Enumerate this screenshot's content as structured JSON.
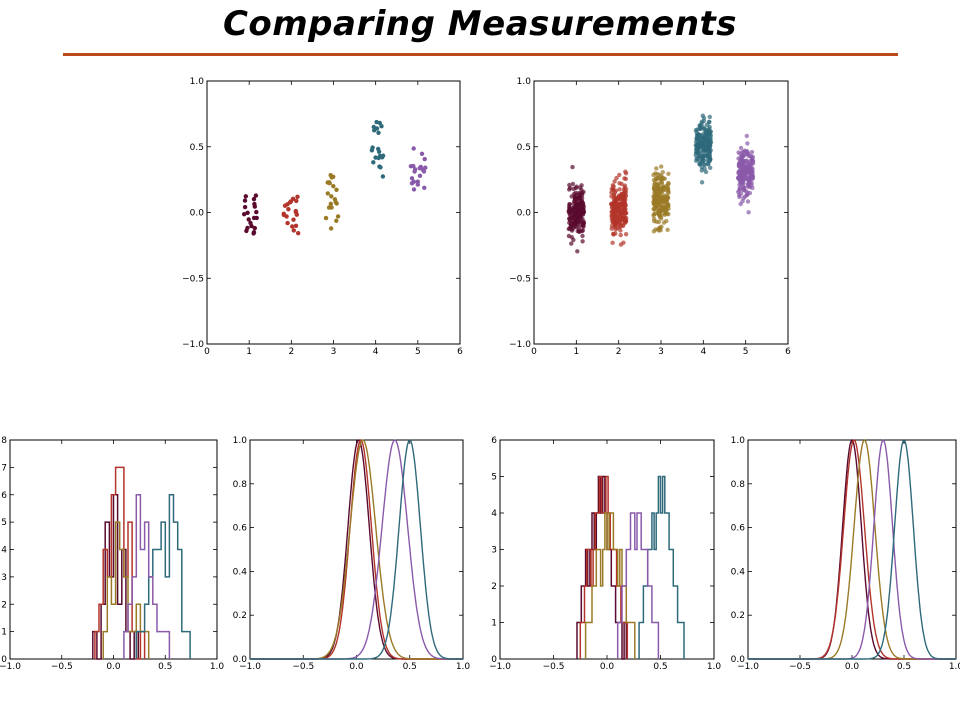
{
  "slide": {
    "title": "Comparing Measurements",
    "rule_color": "#b84a1c"
  },
  "palette": {
    "c1": "#5a0a2e",
    "c2": "#b2342a",
    "c3": "#9a7a26",
    "c4": "#2e6a7a",
    "c5": "#8a5aaa"
  },
  "chart_data": [
    {
      "id": "scatter-small",
      "type": "scatter",
      "title": "",
      "xlabel": "",
      "ylabel": "",
      "xlim": [
        0,
        6
      ],
      "ylim": [
        -1.0,
        1.0
      ],
      "xticks": [
        "0",
        "1",
        "2",
        "3",
        "4",
        "5",
        "6"
      ],
      "yticks": [
        "-1.0",
        "-0.5",
        "0.0",
        "0.5",
        "1.0"
      ],
      "grid": false,
      "points_per_group": 20,
      "groups": [
        {
          "x": 1,
          "center": 0.0,
          "spread": 0.1,
          "color": "c1"
        },
        {
          "x": 2,
          "center": 0.02,
          "spread": 0.1,
          "color": "c2"
        },
        {
          "x": 3,
          "center": 0.12,
          "spread": 0.1,
          "color": "c3"
        },
        {
          "x": 4,
          "center": 0.5,
          "spread": 0.1,
          "color": "c4"
        },
        {
          "x": 5,
          "center": 0.32,
          "spread": 0.1,
          "color": "c5"
        }
      ]
    },
    {
      "id": "scatter-large",
      "type": "scatter",
      "title": "",
      "xlabel": "",
      "ylabel": "",
      "xlim": [
        0,
        6
      ],
      "ylim": [
        -1.0,
        1.0
      ],
      "xticks": [
        "0",
        "1",
        "2",
        "3",
        "4",
        "5",
        "6"
      ],
      "yticks": [
        "-1.0",
        "-0.5",
        "0.0",
        "0.5",
        "1.0"
      ],
      "grid": false,
      "points_per_group": 200,
      "groups": [
        {
          "x": 1,
          "center": 0.0,
          "spread": 0.09,
          "color": "c1"
        },
        {
          "x": 2,
          "center": 0.03,
          "spread": 0.1,
          "color": "c2"
        },
        {
          "x": 3,
          "center": 0.1,
          "spread": 0.1,
          "color": "c3"
        },
        {
          "x": 4,
          "center": 0.5,
          "spread": 0.09,
          "color": "c4"
        },
        {
          "x": 5,
          "center": 0.3,
          "spread": 0.09,
          "color": "c5"
        }
      ]
    },
    {
      "id": "hist-small",
      "type": "histogram",
      "xlim": [
        -1.0,
        1.0
      ],
      "ylim": [
        0,
        8
      ],
      "xticks": [
        "-1.0",
        "-0.5",
        "0.0",
        "0.5",
        "1.0"
      ],
      "yticks": [
        "0",
        "1",
        "2",
        "3",
        "4",
        "5",
        "6",
        "7",
        "8"
      ],
      "series": [
        {
          "color": "c1",
          "start": -0.2,
          "bin": 0.04,
          "counts": [
            1,
            0,
            2,
            5,
            3,
            6,
            2,
            4,
            1,
            0,
            1
          ]
        },
        {
          "color": "c2",
          "start": -0.18,
          "bin": 0.04,
          "counts": [
            1,
            2,
            4,
            3,
            6,
            7,
            7,
            3,
            5,
            1,
            0,
            1
          ]
        },
        {
          "color": "c3",
          "start": -0.1,
          "bin": 0.04,
          "counts": [
            1,
            3,
            2,
            5,
            4,
            3,
            1,
            1,
            2,
            1,
            1
          ]
        },
        {
          "color": "c4",
          "start": 0.22,
          "bin": 0.04,
          "counts": [
            1,
            1,
            2,
            3,
            4,
            4,
            5,
            3,
            6,
            5,
            4,
            1,
            1
          ]
        },
        {
          "color": "c5",
          "start": 0.1,
          "bin": 0.04,
          "counts": [
            1,
            2,
            3,
            6,
            4,
            5,
            3,
            2,
            1,
            1,
            1
          ]
        }
      ]
    },
    {
      "id": "density-small",
      "type": "line",
      "xlim": [
        -1.0,
        1.0
      ],
      "ylim": [
        0,
        1.0
      ],
      "xticks": [
        "-1.0",
        "-0.5",
        "0.0",
        "0.5",
        "1.0"
      ],
      "yticks": [
        "0.0",
        "0.2",
        "0.4",
        "0.6",
        "0.8",
        "1.0"
      ],
      "series": [
        {
          "color": "c1",
          "mu": 0.02,
          "sigma": 0.1
        },
        {
          "color": "c2",
          "mu": 0.04,
          "sigma": 0.1
        },
        {
          "color": "c3",
          "mu": 0.06,
          "sigma": 0.12
        },
        {
          "color": "c5",
          "mu": 0.36,
          "sigma": 0.12
        },
        {
          "color": "c4",
          "mu": 0.5,
          "sigma": 0.1
        }
      ]
    },
    {
      "id": "hist-large",
      "type": "histogram",
      "xlim": [
        -1.0,
        1.0
      ],
      "ylim": [
        0,
        6
      ],
      "xticks": [
        "-1.0",
        "-0.5",
        "0.0",
        "0.5",
        "1.0"
      ],
      "yticks": [
        "0",
        "1",
        "2",
        "3",
        "4",
        "5",
        "6"
      ],
      "series": [
        {
          "color": "c1",
          "start": -0.28,
          "bin": 0.02,
          "counts": [
            1,
            1,
            2,
            2,
            3,
            2,
            3,
            4,
            3,
            4,
            5,
            4,
            5,
            4,
            3,
            3,
            2,
            2,
            1,
            1,
            1,
            0,
            1
          ]
        },
        {
          "color": "c2",
          "start": -0.25,
          "bin": 0.02,
          "counts": [
            1,
            1,
            2,
            3,
            3,
            2,
            3,
            4,
            4,
            5,
            4,
            4,
            5,
            4,
            3,
            3,
            3,
            2,
            2,
            1,
            1,
            1
          ]
        },
        {
          "color": "c3",
          "start": -0.2,
          "bin": 0.02,
          "counts": [
            1,
            1,
            1,
            2,
            2,
            3,
            3,
            2,
            3,
            4,
            3,
            4,
            4,
            3,
            3,
            2,
            3,
            2,
            2,
            1,
            1,
            1,
            1
          ]
        },
        {
          "color": "c4",
          "start": 0.3,
          "bin": 0.02,
          "counts": [
            1,
            1,
            2,
            2,
            3,
            3,
            4,
            3,
            4,
            5,
            4,
            5,
            4,
            4,
            3,
            3,
            2,
            2,
            1,
            1,
            1
          ]
        },
        {
          "color": "c5",
          "start": 0.1,
          "bin": 0.02,
          "counts": [
            1,
            1,
            2,
            2,
            3,
            3,
            4,
            4,
            3,
            4,
            4,
            3,
            3,
            3,
            2,
            2,
            1,
            1,
            1
          ]
        }
      ]
    },
    {
      "id": "density-large",
      "type": "line",
      "xlim": [
        -1.0,
        1.0
      ],
      "ylim": [
        0,
        1.0
      ],
      "xticks": [
        "-1.0",
        "-0.5",
        "0.0",
        "0.5",
        "1.0"
      ],
      "yticks": [
        "0.0",
        "0.2",
        "0.4",
        "0.6",
        "0.8",
        "1.0"
      ],
      "series": [
        {
          "color": "c1",
          "mu": 0.0,
          "sigma": 0.09
        },
        {
          "color": "c2",
          "mu": 0.02,
          "sigma": 0.1
        },
        {
          "color": "c3",
          "mu": 0.12,
          "sigma": 0.1
        },
        {
          "color": "c5",
          "mu": 0.3,
          "sigma": 0.09
        },
        {
          "color": "c4",
          "mu": 0.5,
          "sigma": 0.09
        }
      ]
    }
  ]
}
